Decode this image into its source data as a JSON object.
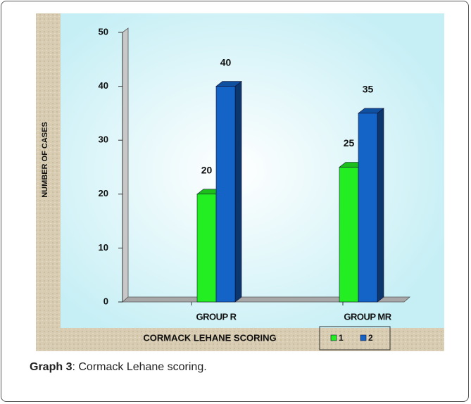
{
  "chart_data": {
    "type": "bar3d",
    "categories": [
      "GROUP R",
      "GROUP MR"
    ],
    "series": [
      {
        "name": "1",
        "color": "#22ee22",
        "values": [
          20,
          25
        ]
      },
      {
        "name": "2",
        "color": "#1464c8",
        "values": [
          40,
          35
        ]
      }
    ],
    "xlabel": "CORMACK LEHANE SCORING",
    "ylabel": "NUMBER OF CASES",
    "ylim": [
      0,
      50
    ],
    "yticks": [
      0,
      10,
      20,
      30,
      40,
      50
    ],
    "legend": "bottom-right"
  },
  "caption": {
    "label": "Graph 3",
    "text": ": Cormack Lehane scoring."
  }
}
